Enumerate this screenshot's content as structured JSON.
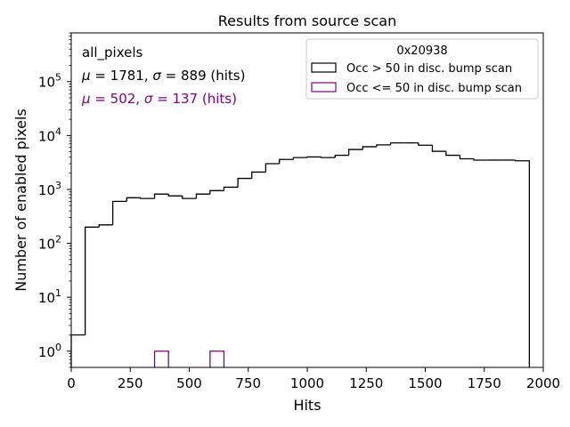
{
  "chart_data": {
    "type": "histogram",
    "title": "Results from source scan",
    "xlabel": "Hits",
    "ylabel": "Number of enabled pixels",
    "yscale": "log",
    "xlim": [
      0,
      2000
    ],
    "ylim": [
      0.5,
      800000
    ],
    "x_ticks": [
      0,
      250,
      500,
      750,
      1000,
      1250,
      1500,
      1750,
      2000
    ],
    "x_tick_labels": [
      "0",
      "250",
      "500",
      "750",
      "1000",
      "1250",
      "1500",
      "1750",
      "2000"
    ],
    "y_ticks": [
      1,
      10,
      100,
      1000,
      10000,
      100000
    ],
    "y_tick_labels": [
      {
        "base": "10",
        "exp": "0"
      },
      {
        "base": "10",
        "exp": "1"
      },
      {
        "base": "10",
        "exp": "2"
      },
      {
        "base": "10",
        "exp": "3"
      },
      {
        "base": "10",
        "exp": "4"
      },
      {
        "base": "10",
        "exp": "5"
      }
    ],
    "legend": {
      "title": "0x20938",
      "location": "top-right",
      "entries": [
        "Occ > 50 in disc. bump scan",
        "Occ <= 50 in disc. bump scan"
      ]
    },
    "annotations": {
      "label": "all_pixels",
      "stats": [
        {
          "mu_sym": "μ",
          "mu_val": " = 1781, ",
          "sigma_sym": "σ",
          "sigma_val": " = 889 (hits)",
          "color": "#000000"
        },
        {
          "mu_sym": "μ",
          "mu_val": " = 502, ",
          "sigma_sym": "σ",
          "sigma_val": " = 137 (hits)",
          "color": "#800080"
        }
      ]
    },
    "series": [
      {
        "name": "Occ > 50 in disc. bump scan",
        "color": "#000000",
        "bin_edges": [
          0,
          59,
          118,
          176,
          235,
          294,
          353,
          412,
          471,
          530,
          588,
          647,
          706,
          765,
          824,
          882,
          941,
          1000,
          1059,
          1118,
          1176,
          1235,
          1294,
          1353,
          1412,
          1471,
          1530,
          1588,
          1647,
          1706,
          1765,
          1824,
          1882,
          1941
        ],
        "values": [
          2,
          200,
          220,
          600,
          700,
          680,
          820,
          760,
          680,
          820,
          950,
          1100,
          1600,
          2100,
          3000,
          3600,
          3900,
          4000,
          3900,
          4300,
          5500,
          6200,
          6700,
          7300,
          7300,
          6600,
          5100,
          4300,
          3700,
          3500,
          3500,
          3500,
          3400
        ]
      },
      {
        "name": "Occ <= 50 in disc. bump scan",
        "color": "#800080",
        "bins": [
          {
            "from": 353,
            "to": 412,
            "value": 1
          },
          {
            "from": 588,
            "to": 647,
            "value": 1
          }
        ]
      }
    ]
  }
}
